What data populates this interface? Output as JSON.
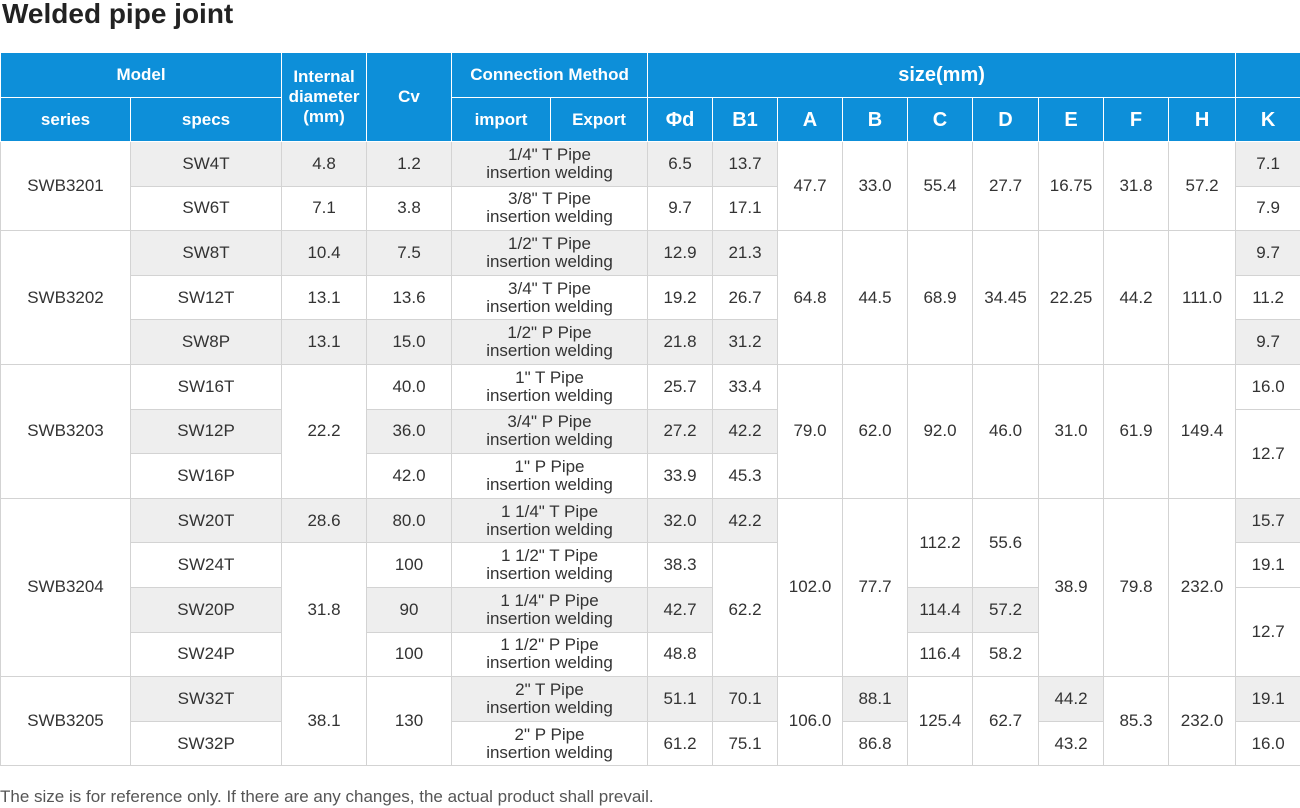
{
  "header": {
    "title": "Welded pipe joint"
  },
  "table": {
    "head": {
      "model": "Model",
      "internal": "Internal diameter (mm)",
      "cv": "Cv",
      "connection": "Connection Method",
      "size": "size(mm)",
      "columns": [
        "series",
        "specs",
        "import",
        "Export",
        "Φd",
        "B1",
        "A",
        "B",
        "C",
        "D",
        "E",
        "F",
        "H",
        "K"
      ]
    },
    "rows": [
      [
        "SWB3201",
        "SW4T",
        "4.8",
        "1.2",
        "1/4\" T Pipe\ninsertion welding",
        "6.5",
        "13.7",
        "47.7",
        "33.0",
        "55.4",
        "27.7",
        "16.75",
        "31.8",
        "57.2",
        "7.1"
      ],
      [
        null,
        "SW6T",
        "7.1",
        "3.8",
        "3/8\" T Pipe\ninsertion welding",
        "9.7",
        "17.1",
        null,
        null,
        null,
        null,
        null,
        null,
        null,
        "7.9"
      ],
      [
        "SWB3202",
        "SW8T",
        "10.4",
        "7.5",
        "1/2\" T Pipe\ninsertion welding",
        "12.9",
        "21.3",
        "64.8",
        "44.5",
        "68.9",
        "34.45",
        "22.25",
        "44.2",
        "111.0",
        "9.7"
      ],
      [
        null,
        "SW12T",
        "13.1",
        "13.6",
        "3/4\" T Pipe\ninsertion welding",
        "19.2",
        "26.7",
        null,
        null,
        null,
        null,
        null,
        null,
        null,
        "11.2"
      ],
      [
        null,
        "SW8P",
        "13.1",
        "15.0",
        "1/2\" P Pipe\ninsertion welding",
        "21.8",
        "31.2",
        null,
        null,
        null,
        null,
        null,
        null,
        null,
        "9.7"
      ],
      [
        "SWB3203",
        "SW16T",
        "22.2",
        "40.0",
        "1\" T Pipe\ninsertion welding",
        "25.7",
        "33.4",
        "79.0",
        "62.0",
        "92.0",
        "46.0",
        "31.0",
        "61.9",
        "149.4",
        "16.0"
      ],
      [
        null,
        "SW12P",
        null,
        "36.0",
        "3/4\" P Pipe\ninsertion welding",
        "27.2",
        "42.2",
        null,
        null,
        null,
        null,
        null,
        null,
        null,
        "12.7"
      ],
      [
        null,
        "SW16P",
        null,
        "42.0",
        "1\" P Pipe\ninsertion welding",
        "33.9",
        "45.3",
        null,
        null,
        null,
        null,
        null,
        null,
        null,
        null
      ],
      [
        "SWB3204",
        "SW20T",
        "28.6",
        "80.0",
        "1 1/4\" T Pipe\ninsertion welding",
        "32.0",
        "42.2",
        "102.0",
        "77.7",
        "112.2",
        "55.6",
        "38.9",
        "79.8",
        "232.0",
        "15.7"
      ],
      [
        null,
        "SW24T",
        "31.8",
        "100",
        "1 1/2\" T Pipe\ninsertion welding",
        "38.3",
        "62.2",
        null,
        null,
        null,
        null,
        null,
        null,
        null,
        "19.1"
      ],
      [
        null,
        "SW20P",
        null,
        "90",
        "1 1/4\" P Pipe\ninsertion welding",
        "42.7",
        null,
        null,
        null,
        "114.4",
        "57.2",
        null,
        null,
        null,
        "12.7"
      ],
      [
        null,
        "SW24P",
        null,
        "100",
        "1 1/2\" P Pipe\ninsertion welding",
        "48.8",
        null,
        null,
        null,
        "116.4",
        "58.2",
        null,
        null,
        null,
        null
      ],
      [
        "SWB3205",
        "SW32T",
        "38.1",
        "130",
        "2\" T Pipe\ninsertion welding",
        "51.1",
        "70.1",
        "106.0",
        "88.1",
        "125.4",
        "62.7",
        "44.2",
        "85.3",
        "232.0",
        "19.1"
      ],
      [
        null,
        "SW32P",
        null,
        null,
        "2\" P Pipe\ninsertion welding",
        "61.2",
        "75.1",
        null,
        "86.8",
        null,
        null,
        "43.2",
        null,
        null,
        "16.0"
      ]
    ]
  },
  "footer": {
    "note": "The size is for reference only. If there are any changes, the actual product shall prevail."
  }
}
